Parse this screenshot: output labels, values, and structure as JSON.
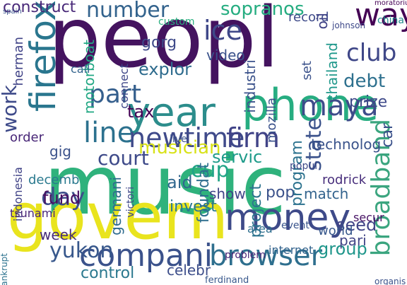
{
  "words": [
    {
      "text": "peopl",
      "color": "#44135f",
      "big": true
    },
    {
      "text": "music",
      "color": "#2fb27c",
      "big": true
    },
    {
      "text": "govern",
      "color": "#e9e41e",
      "big": true
    },
    {
      "text": "firefox",
      "color": "#2a768e",
      "big": true
    },
    {
      "text": "phone",
      "color": "#27ad81"
    },
    {
      "text": "year",
      "color": "#2c8d8c"
    },
    {
      "text": "money",
      "color": "#3e4a89"
    },
    {
      "text": "compani",
      "color": "#3b528b"
    },
    {
      "text": "browser",
      "color": "#2e6f8e"
    },
    {
      "text": "broadband",
      "color": "#3ba57f"
    },
    {
      "text": "maya",
      "color": "#3e4c8a"
    },
    {
      "text": "line",
      "color": "#2c718e"
    },
    {
      "text": "newtime",
      "color": "#3f4a8a"
    },
    {
      "text": "firm",
      "color": "#404387"
    },
    {
      "text": "way",
      "color": "#440154"
    },
    {
      "text": "club",
      "color": "#3f4788"
    },
    {
      "text": "state",
      "color": "#3b528b"
    },
    {
      "text": "part",
      "color": "#355f8d"
    },
    {
      "text": "day",
      "color": "#3d4e8a"
    },
    {
      "text": "number",
      "color": "#33638d"
    },
    {
      "text": "ice",
      "color": "#3f4889"
    },
    {
      "text": "sopranos",
      "color": "#26ad81"
    },
    {
      "text": "musician",
      "color": "#d8e219"
    },
    {
      "text": "court",
      "color": "#3e4a89"
    },
    {
      "text": "debt",
      "color": "#2d708e"
    },
    {
      "text": "prize",
      "color": "#3e4989"
    },
    {
      "text": "cup",
      "color": "#20a486"
    },
    {
      "text": "tax",
      "color": "#440154"
    },
    {
      "text": "yukon",
      "color": "#38588c"
    },
    {
      "text": "group",
      "color": "#1f968b"
    },
    {
      "text": "fund",
      "color": "#470e61"
    },
    {
      "text": "explor",
      "color": "#2f6c8e"
    },
    {
      "text": "gorg",
      "color": "#3e4989"
    },
    {
      "text": "work",
      "color": "#3e4a89"
    },
    {
      "text": "servic",
      "color": "#1e9b8a"
    },
    {
      "text": "technolog",
      "color": "#3a538b"
    },
    {
      "text": "project",
      "color": "#2c738e"
    },
    {
      "text": "pop",
      "color": "#3b528b"
    },
    {
      "text": "aid",
      "color": "#31678e"
    },
    {
      "text": "show",
      "color": "#404688"
    },
    {
      "text": "industri",
      "color": "#3b528b"
    },
    {
      "text": "program",
      "color": "#2c728e"
    },
    {
      "text": "match",
      "color": "#33638d"
    },
    {
      "text": "rodrick",
      "color": "#472d7b"
    },
    {
      "text": "seed",
      "color": "#414487"
    },
    {
      "text": "pari",
      "color": "#414487"
    },
    {
      "text": "control",
      "color": "#2a788e"
    },
    {
      "text": "celebr",
      "color": "#3d4e8a"
    },
    {
      "text": "week",
      "color": "#472c7a"
    },
    {
      "text": "invest",
      "color": "#2a788e"
    },
    {
      "text": "foundat",
      "color": "#2e6e8e"
    },
    {
      "text": "video",
      "color": "#3b528b"
    },
    {
      "text": "germani",
      "color": "#2f6b8e"
    },
    {
      "text": "indonesia",
      "color": "#404387"
    },
    {
      "text": "thailand",
      "color": "#1f988b"
    },
    {
      "text": "mozilla",
      "color": "#3b528b"
    },
    {
      "text": "record",
      "color": "#3e4a89"
    },
    {
      "text": "oil",
      "color": "#404387"
    },
    {
      "text": "set",
      "color": "#3b528b"
    },
    {
      "text": "motorboat",
      "color": "#22a884"
    },
    {
      "text": "gig",
      "color": "#3b528b"
    },
    {
      "text": "order",
      "color": "#482677"
    },
    {
      "text": "decemb",
      "color": "#29798e"
    },
    {
      "text": "tsunami",
      "color": "#482677"
    },
    {
      "text": "world",
      "color": "#38588c"
    },
    {
      "text": "event",
      "color": "#3a548c"
    },
    {
      "text": "area",
      "color": "#2e6e8e"
    },
    {
      "text": "internet",
      "color": "#33638d"
    },
    {
      "text": "secur",
      "color": "#471365"
    },
    {
      "text": "popul",
      "color": "#3e4989"
    },
    {
      "text": "construct",
      "color": "#482878"
    },
    {
      "text": "herman",
      "color": "#404387"
    },
    {
      "text": "connect",
      "color": "#3f4788"
    },
    {
      "text": "custom",
      "color": "#29af7f"
    },
    {
      "text": "call",
      "color": "#33638d"
    },
    {
      "text": "victori",
      "color": "#3f4788"
    },
    {
      "text": "live",
      "color": "#3b528b"
    },
    {
      "text": "car",
      "color": "#3b528b"
    },
    {
      "text": "china",
      "color": "#228d8d"
    },
    {
      "text": "moratorium",
      "color": "#440154"
    },
    {
      "text": "johnson",
      "color": "#3e4989"
    },
    {
      "text": "bankrupt",
      "color": "#2c728e"
    },
    {
      "text": "ferdinand",
      "color": "#38588c"
    },
    {
      "text": "problem",
      "color": "#482677"
    },
    {
      "text": "organis",
      "color": "#3b528b"
    },
    {
      "text": "spain",
      "color": "#3b528b"
    }
  ]
}
